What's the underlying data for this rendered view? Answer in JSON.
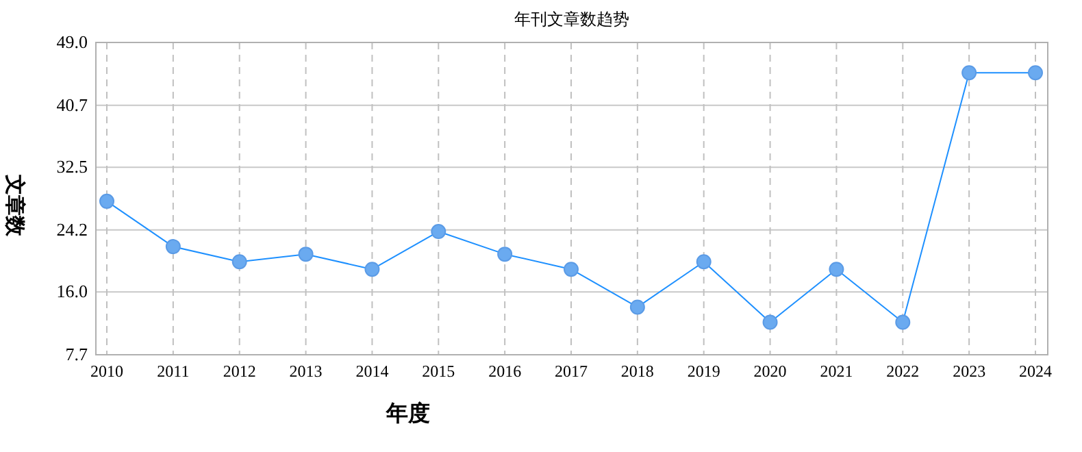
{
  "chart_data": {
    "type": "line",
    "title": "年刊文章数趋势",
    "xlabel": "年度",
    "ylabel": "文章数",
    "categories": [
      "2010",
      "2011",
      "2012",
      "2013",
      "2014",
      "2015",
      "2016",
      "2017",
      "2018",
      "2019",
      "2020",
      "2021",
      "2022",
      "2023",
      "2024"
    ],
    "series": [
      {
        "color": "#1e90ff",
        "values": [
          28,
          22,
          20,
          21,
          19,
          24,
          21,
          19,
          14,
          20,
          12,
          19,
          12,
          45,
          45
        ]
      }
    ],
    "ylim": [
      7.7,
      49.0
    ],
    "yticks": [
      {
        "value": 7.7,
        "label": "7.7"
      },
      {
        "value": 16.0,
        "label": "16.0"
      },
      {
        "value": 24.2,
        "label": "24.2"
      },
      {
        "value": 32.5,
        "label": "32.5"
      },
      {
        "value": 40.7,
        "label": "40.7"
      },
      {
        "value": 49.0,
        "label": "49.0"
      }
    ],
    "grid": true,
    "marker": "circle",
    "line_style": "solid"
  }
}
